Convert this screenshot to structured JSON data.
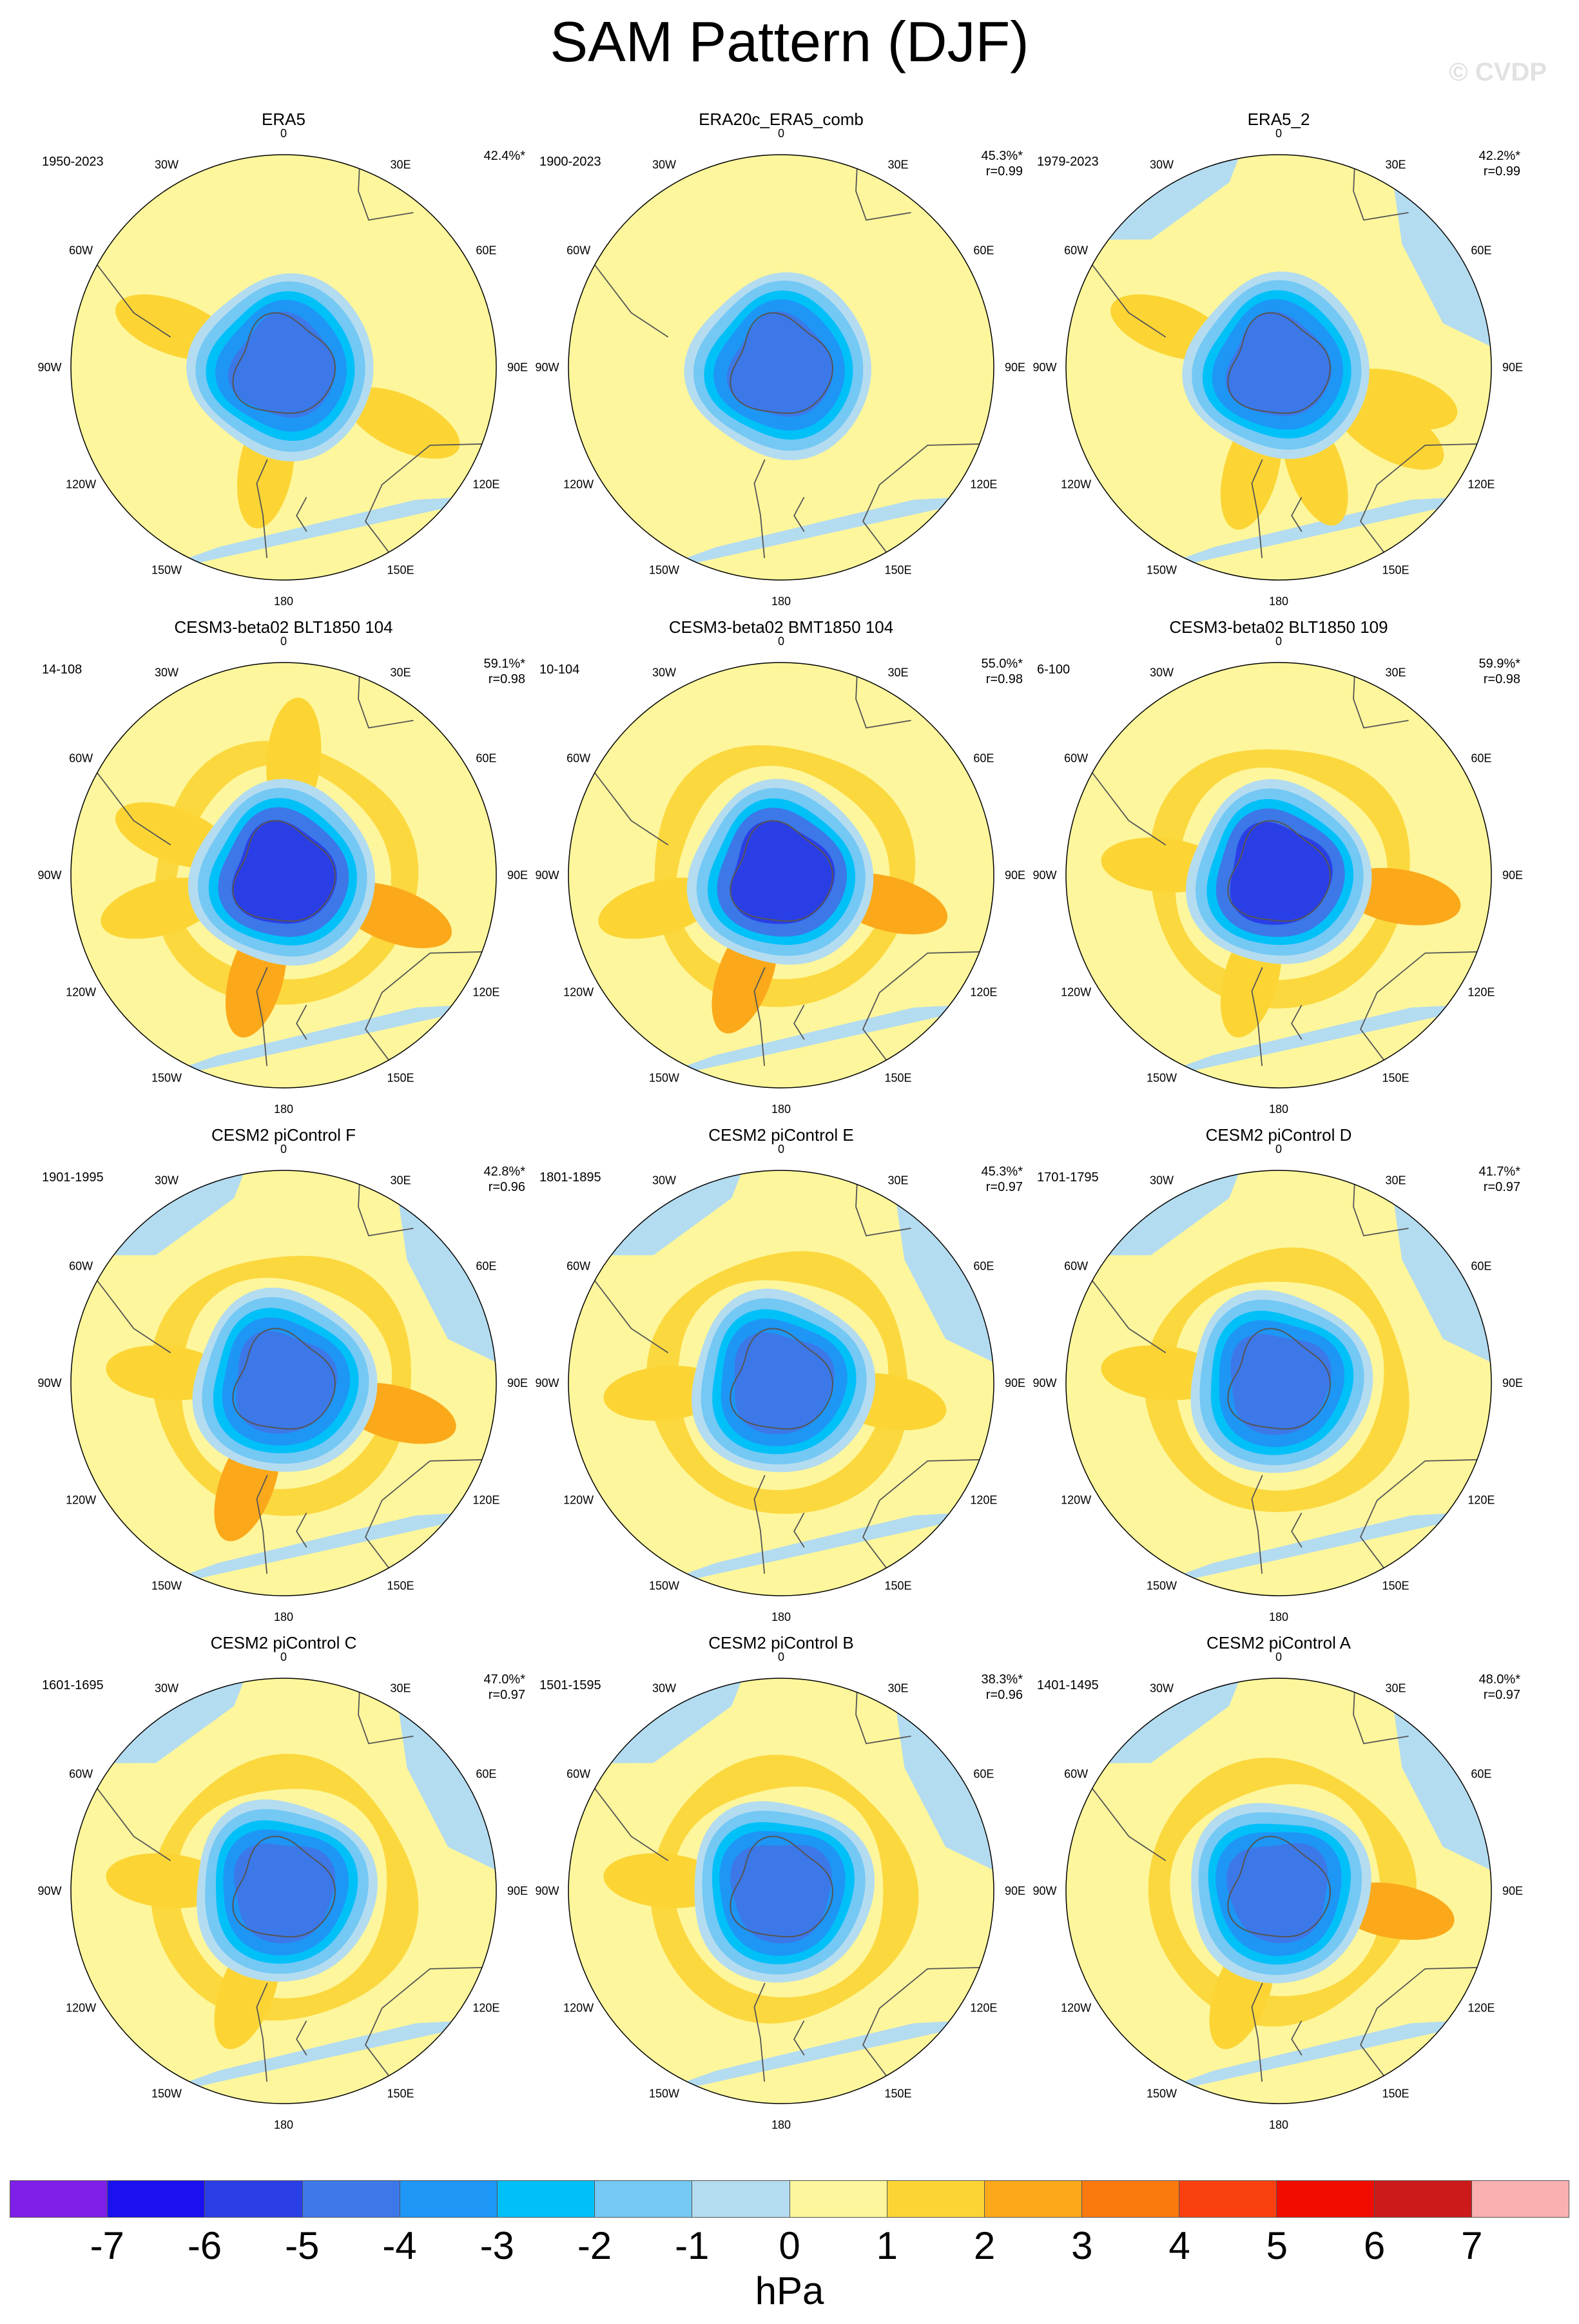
{
  "title": "SAM Pattern (DJF)",
  "watermark": "© CVDP",
  "units": "hPa",
  "longitude_labels": [
    "0",
    "30E",
    "60E",
    "90E",
    "120E",
    "150E",
    "180",
    "150W",
    "120W",
    "90W",
    "60W",
    "30W"
  ],
  "colors": {
    "m7": "#7f20e8",
    "m6": "#1a10f0",
    "m5": "#2a3ee6",
    "m4": "#3c78e8",
    "m3": "#1e96f6",
    "m2": "#00c0f8",
    "m1": "#74c8f4",
    "m0": "#b4dcf0",
    "p0": "#fdf69c",
    "p1": "#fcd535",
    "p2": "#fba91a",
    "p3": "#fb7a10",
    "p4": "#fb4010",
    "p5": "#f00d00",
    "p6": "#cc1a1a",
    "p7": "#fab0b0",
    "coast": "#555555"
  },
  "colorbar": {
    "colors": [
      "#7f20e8",
      "#1a10f0",
      "#2a3ee6",
      "#3c78e8",
      "#1e96f6",
      "#00c0f8",
      "#74c8f4",
      "#b4dcf0",
      "#fdf69c",
      "#fcd535",
      "#fba91a",
      "#fb7a10",
      "#fb4010",
      "#f00d00",
      "#cc1a1a",
      "#fab0b0"
    ],
    "labels": [
      "-7",
      "-6",
      "-5",
      "-4",
      "-3",
      "-2",
      "-1",
      "0",
      "1",
      "2",
      "3",
      "4",
      "5",
      "6",
      "7"
    ]
  },
  "panels": [
    {
      "title": "ERA5",
      "years": "1950-2023",
      "pct": "42.4%*",
      "r": "",
      "center": "m4",
      "icc": "m3",
      "ring1": -4,
      "ring2": -3,
      "ocean_hi": false,
      "blue": 0.22,
      "lobes": [
        [
          0.62,
          115,
          "p1"
        ],
        [
          0.55,
          290,
          "p1"
        ],
        [
          0.48,
          190,
          "p1"
        ]
      ]
    },
    {
      "title": "ERA20c_ERA5_comb",
      "years": "1900-2023",
      "pct": "45.3%*",
      "r": "r=0.99",
      "center": "m4",
      "icc": "m3",
      "ring1": -4,
      "ring2": -3,
      "ocean_hi": false,
      "blue": 0.25,
      "lobes": []
    },
    {
      "title": "ERA5_2",
      "years": "1979-2023",
      "pct": "42.2%*",
      "r": "r=0.99",
      "center": "m4",
      "icc": "m3",
      "ring1": -4,
      "ring2": -3,
      "ocean_hi": false,
      "blue": 0.32,
      "lobes": [
        [
          0.58,
          105,
          "p1"
        ],
        [
          0.55,
          290,
          "p1"
        ],
        [
          0.6,
          120,
          "p1"
        ],
        [
          0.5,
          160,
          "p1"
        ],
        [
          0.5,
          195,
          "p1"
        ]
      ]
    },
    {
      "title": "CESM3-beta02 BLT1850 104",
      "years": "14-108",
      "pct": "59.1%*",
      "r": "r=0.98",
      "center": "m5",
      "icc": "m4",
      "ring1": -5,
      "ring2": -4,
      "ocean_hi": true,
      "blue": 0.2,
      "lobes": [
        [
          0.55,
          110,
          "p2"
        ],
        [
          0.55,
          290,
          "p1"
        ],
        [
          0.5,
          195,
          "p2"
        ],
        [
          0.55,
          5,
          "p1"
        ],
        [
          0.6,
          255,
          "p1"
        ]
      ]
    },
    {
      "title": "CESM3-beta02 BMT1850 104",
      "years": "10-104",
      "pct": "55.0%*",
      "r": "r=0.98",
      "center": "m5",
      "icc": "m4",
      "ring1": -5,
      "ring2": -4,
      "ocean_hi": true,
      "blue": 0.22,
      "lobes": [
        [
          0.52,
          105,
          "p2"
        ],
        [
          0.5,
          200,
          "p2"
        ],
        [
          0.6,
          255,
          "p1"
        ]
      ]
    },
    {
      "title": "CESM3-beta02 BLT1850 109",
      "years": "6-100",
      "pct": "59.9%*",
      "r": "r=0.98",
      "center": "m5",
      "icc": "m4",
      "ring1": -5,
      "ring2": -4,
      "ocean_hi": true,
      "blue": 0.12,
      "lobes": [
        [
          0.58,
          100,
          "p2"
        ],
        [
          0.5,
          195,
          "p1"
        ],
        [
          0.55,
          275,
          "p1"
        ]
      ]
    },
    {
      "title": "CESM2 piControl F",
      "years": "1901-1995",
      "pct": "42.8%*",
      "r": "r=0.96",
      "center": "m4",
      "icc": "m3",
      "ring1": -4,
      "ring2": -3,
      "ocean_hi": true,
      "blue": 0.35,
      "lobes": [
        [
          0.55,
          105,
          "p2"
        ],
        [
          0.5,
          200,
          "p2"
        ],
        [
          0.55,
          275,
          "p1"
        ]
      ]
    },
    {
      "title": "CESM2 piControl E",
      "years": "1801-1895",
      "pct": "45.3%*",
      "r": "r=0.97",
      "center": "m4",
      "icc": "m3",
      "ring1": -4,
      "ring2": -3,
      "ocean_hi": true,
      "blue": 0.35,
      "lobes": [
        [
          0.5,
          100,
          "p1"
        ],
        [
          0.55,
          265,
          "p1"
        ]
      ]
    },
    {
      "title": "CESM2 piControl D",
      "years": "1701-1795",
      "pct": "41.7%*",
      "r": "r=0.97",
      "center": "m4",
      "icc": "m3",
      "ring1": -4,
      "ring2": -3,
      "ocean_hi": true,
      "blue": 0.45,
      "lobes": [
        [
          0.55,
          275,
          "p1"
        ]
      ]
    },
    {
      "title": "CESM2 piControl C",
      "years": "1601-1695",
      "pct": "47.0%*",
      "r": "r=0.97",
      "center": "m4",
      "icc": "m3",
      "ring1": -4,
      "ring2": -3,
      "ocean_hi": true,
      "blue": 0.38,
      "lobes": [
        [
          0.5,
          200,
          "p1"
        ],
        [
          0.55,
          275,
          "p1"
        ]
      ]
    },
    {
      "title": "CESM2 piControl B",
      "years": "1501-1595",
      "pct": "38.3%*",
      "r": "r=0.96",
      "center": "m4",
      "icc": "m3",
      "ring1": -4,
      "ring2": -3,
      "ocean_hi": true,
      "blue": 0.5,
      "lobes": [
        [
          0.55,
          275,
          "p1"
        ]
      ]
    },
    {
      "title": "CESM2 piControl A",
      "years": "1401-1495",
      "pct": "48.0%*",
      "r": "r=0.97",
      "center": "m4",
      "icc": "m3",
      "ring1": -4,
      "ring2": -3,
      "ocean_hi": true,
      "blue": 0.45,
      "lobes": [
        [
          0.55,
          100,
          "p2"
        ],
        [
          0.5,
          200,
          "p1"
        ]
      ]
    }
  ]
}
